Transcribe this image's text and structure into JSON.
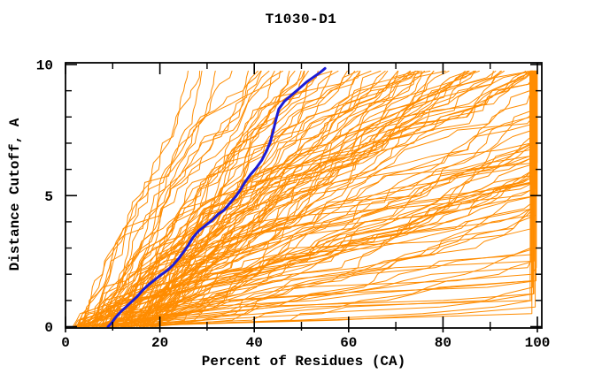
{
  "chart_data": {
    "type": "line",
    "title": "T1030-D1",
    "xlabel": "Percent of Residues (CA)",
    "ylabel": "Distance Cutoff, A",
    "xlim": [
      0,
      100
    ],
    "ylim": [
      0,
      10
    ],
    "x_major_ticks": [
      0,
      20,
      40,
      60,
      80,
      100
    ],
    "x_minor_ticks": [
      10,
      30,
      50,
      70,
      90
    ],
    "y_major_ticks": [
      0,
      5,
      10
    ],
    "y_minor_ticks": [
      1,
      2,
      3,
      4,
      6,
      7,
      8,
      9
    ],
    "grid": false,
    "legend": "none",
    "axis_color": "#000000",
    "background_color": "#ffffff",
    "series": [
      {
        "name": "highlighted-model",
        "color": "#1c1cd6",
        "stroke_width": 3,
        "points": [
          [
            9.0,
            0
          ],
          [
            9.8,
            0.15
          ],
          [
            10.6,
            0.35
          ],
          [
            11.6,
            0.55
          ],
          [
            12.8,
            0.75
          ],
          [
            14.0,
            0.95
          ],
          [
            15.2,
            1.15
          ],
          [
            16.4,
            1.4
          ],
          [
            17.6,
            1.6
          ],
          [
            19.0,
            1.8
          ],
          [
            20.4,
            2.0
          ],
          [
            21.6,
            2.15
          ],
          [
            22.8,
            2.35
          ],
          [
            24.0,
            2.6
          ],
          [
            25.0,
            2.85
          ],
          [
            26.0,
            3.1
          ],
          [
            27.0,
            3.4
          ],
          [
            28.2,
            3.65
          ],
          [
            29.6,
            3.85
          ],
          [
            31.0,
            4.05
          ],
          [
            32.4,
            4.3
          ],
          [
            33.6,
            4.45
          ],
          [
            34.8,
            4.7
          ],
          [
            36.0,
            4.95
          ],
          [
            37.0,
            5.2
          ],
          [
            38.0,
            5.5
          ],
          [
            39.2,
            5.8
          ],
          [
            40.4,
            6.05
          ],
          [
            41.6,
            6.35
          ],
          [
            42.6,
            6.7
          ],
          [
            43.4,
            7.05
          ],
          [
            44.0,
            7.45
          ],
          [
            44.6,
            7.9
          ],
          [
            45.2,
            8.3
          ],
          [
            46.4,
            8.6
          ],
          [
            48.0,
            8.85
          ],
          [
            49.6,
            9.1
          ],
          [
            51.2,
            9.35
          ],
          [
            52.8,
            9.55
          ],
          [
            54.0,
            9.7
          ],
          [
            55.0,
            9.85
          ]
        ]
      }
    ],
    "ensemble": {
      "name": "all-models",
      "description": "Orange spaghetti of server model curves: percent of CA residues under each distance cutoff; curves start at 2-20% at 0 A and turn vertical near 100% before the right border",
      "color": "#ff8c00",
      "stroke_width": 1,
      "count": 132,
      "seed": 1030,
      "cutoff_step": 0.25,
      "cutoff_max": 9.75,
      "start_percent_range": [
        1.5,
        20
      ]
    }
  }
}
